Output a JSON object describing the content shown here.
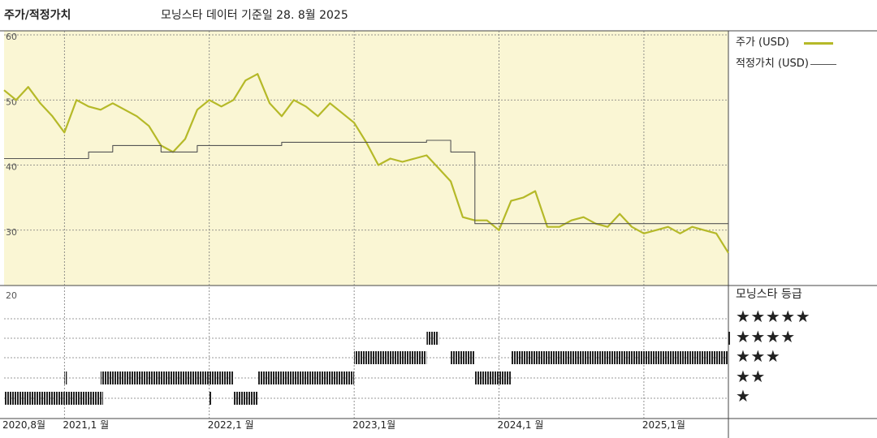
{
  "chart_data": {
    "type": "line",
    "title": "주가/적정가치",
    "subtitle": "모닝스타 데이터 기준일 28. 8월 2025",
    "x_tick_labels": [
      "2020,8월",
      "2021,1 월",
      "2022,1 월",
      "2023,1월",
      "2024,1 월",
      "2025,1월"
    ],
    "y_tick_labels": [
      "60",
      "50",
      "40",
      "30",
      "20"
    ],
    "ylim": [
      20,
      60
    ],
    "xlim": [
      "2020-08",
      "2025-08"
    ],
    "grid": true,
    "legend_position": "right",
    "series": [
      {
        "name": "주가 (USD)",
        "color": "#b5b928",
        "points": [
          [
            "2020-08",
            51.5
          ],
          [
            "2020-09",
            50.0
          ],
          [
            "2020-10",
            52.0
          ],
          [
            "2020-11",
            49.5
          ],
          [
            "2020-12",
            47.5
          ],
          [
            "2021-01",
            45.0
          ],
          [
            "2021-02",
            50.0
          ],
          [
            "2021-03",
            49.0
          ],
          [
            "2021-04",
            48.5
          ],
          [
            "2021-05",
            49.5
          ],
          [
            "2021-06",
            48.5
          ],
          [
            "2021-07",
            47.5
          ],
          [
            "2021-08",
            46.0
          ],
          [
            "2021-09",
            43.0
          ],
          [
            "2021-10",
            42.0
          ],
          [
            "2021-11",
            44.0
          ],
          [
            "2021-12",
            48.5
          ],
          [
            "2022-01",
            50.0
          ],
          [
            "2022-02",
            49.0
          ],
          [
            "2022-03",
            50.0
          ],
          [
            "2022-04",
            53.0
          ],
          [
            "2022-05",
            54.0
          ],
          [
            "2022-06",
            49.5
          ],
          [
            "2022-07",
            47.5
          ],
          [
            "2022-08",
            50.0
          ],
          [
            "2022-09",
            49.0
          ],
          [
            "2022-10",
            47.5
          ],
          [
            "2022-11",
            49.5
          ],
          [
            "2022-12",
            48.0
          ],
          [
            "2023-01",
            46.5
          ],
          [
            "2023-02",
            43.5
          ],
          [
            "2023-03",
            40.0
          ],
          [
            "2023-04",
            41.0
          ],
          [
            "2023-05",
            40.5
          ],
          [
            "2023-06",
            41.0
          ],
          [
            "2023-07",
            41.5
          ],
          [
            "2023-08",
            39.5
          ],
          [
            "2023-09",
            37.5
          ],
          [
            "2023-10",
            32.0
          ],
          [
            "2023-11",
            31.5
          ],
          [
            "2023-12",
            31.5
          ],
          [
            "2024-01",
            30.0
          ],
          [
            "2024-02",
            34.5
          ],
          [
            "2024-03",
            35.0
          ],
          [
            "2024-04",
            36.0
          ],
          [
            "2024-05",
            30.5
          ],
          [
            "2024-06",
            30.5
          ],
          [
            "2024-07",
            31.5
          ],
          [
            "2024-08",
            32.0
          ],
          [
            "2024-09",
            31.0
          ],
          [
            "2024-10",
            30.5
          ],
          [
            "2024-11",
            32.5
          ],
          [
            "2024-12",
            30.5
          ],
          [
            "2025-01",
            29.5
          ],
          [
            "2025-02",
            30.0
          ],
          [
            "2025-03",
            30.5
          ],
          [
            "2025-04",
            29.5
          ],
          [
            "2025-05",
            30.5
          ],
          [
            "2025-06",
            30.0
          ],
          [
            "2025-07",
            29.5
          ],
          [
            "2025-08",
            26.5
          ]
        ]
      },
      {
        "name": "적정가치 (USD)",
        "color": "#555555",
        "points": [
          [
            "2020-08",
            41.0
          ],
          [
            "2021-03",
            41.0
          ],
          [
            "2021-03",
            42.0
          ],
          [
            "2021-05",
            42.0
          ],
          [
            "2021-05",
            43.0
          ],
          [
            "2021-09",
            43.0
          ],
          [
            "2021-09",
            42.0
          ],
          [
            "2021-12",
            42.0
          ],
          [
            "2021-12",
            43.0
          ],
          [
            "2022-07",
            43.0
          ],
          [
            "2022-07",
            43.5
          ],
          [
            "2023-07",
            43.5
          ],
          [
            "2023-07",
            43.8
          ],
          [
            "2023-09",
            43.8
          ],
          [
            "2023-09",
            42.0
          ],
          [
            "2023-11",
            42.0
          ],
          [
            "2023-11",
            31.0
          ],
          [
            "2024-01",
            31.0
          ],
          [
            "2025-08",
            31.0
          ]
        ]
      }
    ],
    "rating": {
      "title": "모닝스타 등급",
      "rows": [
        "★★★★★",
        "★★★★",
        "★★★",
        "★★",
        "★"
      ],
      "segments": [
        {
          "stars": 1,
          "start": "2020-08",
          "end": "2021-01"
        },
        {
          "stars": 2,
          "start": "2021-01",
          "end": "2021-01"
        },
        {
          "stars": 1,
          "start": "2021-01",
          "end": "2021-04"
        },
        {
          "stars": 1,
          "start": "2021-04",
          "end": "2021-04"
        },
        {
          "stars": 2,
          "start": "2021-04",
          "end": "2022-01"
        },
        {
          "stars": 1,
          "start": "2022-01",
          "end": "2022-01"
        },
        {
          "stars": 2,
          "start": "2022-01",
          "end": "2022-03"
        },
        {
          "stars": 1,
          "start": "2022-03",
          "end": "2022-05"
        },
        {
          "stars": 2,
          "start": "2022-05",
          "end": "2023-01"
        },
        {
          "stars": 3,
          "start": "2023-01",
          "end": "2023-07"
        },
        {
          "stars": 4,
          "start": "2023-07",
          "end": "2023-08"
        },
        {
          "stars": 3,
          "start": "2023-09",
          "end": "2023-11"
        },
        {
          "stars": 2,
          "start": "2023-11",
          "end": "2024-02"
        },
        {
          "stars": 3,
          "start": "2024-02",
          "end": "2025-08"
        },
        {
          "stars": 4,
          "start": "2025-08",
          "end": "2025-08"
        }
      ]
    }
  }
}
